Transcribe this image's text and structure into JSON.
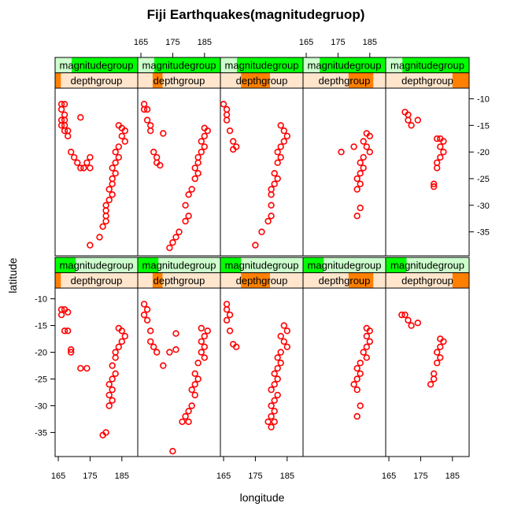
{
  "chart_data": {
    "type": "scatter",
    "title": "Fiji Earthquakes(magnitudegruop)",
    "xlabel": "longitude",
    "ylabel": "latitude",
    "xlim": [
      164,
      190
    ],
    "ylim": [
      -39.5,
      -8
    ],
    "xticks": [
      165,
      175,
      185
    ],
    "yticks": [
      -10,
      -15,
      -20,
      -25,
      -30,
      -35
    ],
    "strip_labels": {
      "top": "magnitudegroup",
      "bottom": "depthgroup"
    },
    "colors": {
      "points": "#ff0000",
      "mag_active": "#00ff00",
      "mag_bg": "#ccffcc",
      "depth_active": "#ff8000",
      "depth_bg": "#ffe5cc"
    },
    "panels": [
      {
        "row": 1,
        "col": 1,
        "magnitude_level": [
          0.2,
          1.0
        ],
        "depth_level": [
          0.0,
          0.07
        ],
        "points": [
          [
            166,
            -11
          ],
          [
            167,
            -11
          ],
          [
            166,
            -12
          ],
          [
            167,
            -13
          ],
          [
            166,
            -14
          ],
          [
            167,
            -14
          ],
          [
            166,
            -15
          ],
          [
            167,
            -15
          ],
          [
            168,
            -16
          ],
          [
            167,
            -16
          ],
          [
            168,
            -17
          ],
          [
            169,
            -20
          ],
          [
            170,
            -21
          ],
          [
            171,
            -22
          ],
          [
            172,
            -23
          ],
          [
            173,
            -23
          ],
          [
            174,
            -22
          ],
          [
            175,
            -21
          ],
          [
            175,
            -23
          ],
          [
            172,
            -13.5
          ],
          [
            184,
            -15
          ],
          [
            185,
            -15.5
          ],
          [
            186,
            -16
          ],
          [
            185,
            -17
          ],
          [
            186,
            -18
          ],
          [
            184,
            -19
          ],
          [
            183,
            -20
          ],
          [
            184,
            -21
          ],
          [
            183,
            -22
          ],
          [
            182,
            -23
          ],
          [
            183,
            -24
          ],
          [
            182,
            -25
          ],
          [
            182,
            -26
          ],
          [
            181,
            -27
          ],
          [
            182,
            -28
          ],
          [
            181,
            -29
          ],
          [
            180,
            -30
          ],
          [
            180,
            -31
          ],
          [
            180,
            -32
          ],
          [
            180,
            -33
          ],
          [
            179,
            -34
          ],
          [
            178,
            -36
          ],
          [
            175,
            -37.5
          ]
        ]
      },
      {
        "row": 1,
        "col": 2,
        "magnitude_level": [
          0.2,
          1.0
        ],
        "depth_level": [
          0.18,
          0.3
        ],
        "points": [
          [
            166,
            -11
          ],
          [
            166,
            -12
          ],
          [
            167,
            -12
          ],
          [
            167,
            -14
          ],
          [
            168,
            -15
          ],
          [
            168,
            -16
          ],
          [
            169,
            -20
          ],
          [
            170,
            -21
          ],
          [
            170,
            -22
          ],
          [
            171,
            -22.5
          ],
          [
            172,
            -16.5
          ],
          [
            185,
            -15.5
          ],
          [
            186,
            -16
          ],
          [
            185,
            -17
          ],
          [
            184,
            -18
          ],
          [
            185,
            -19
          ],
          [
            184,
            -20
          ],
          [
            183,
            -21
          ],
          [
            183,
            -22
          ],
          [
            182,
            -23
          ],
          [
            183,
            -24
          ],
          [
            182,
            -25
          ],
          [
            181,
            -27
          ],
          [
            180,
            -28
          ],
          [
            179,
            -30
          ],
          [
            179,
            -33
          ],
          [
            180,
            -32
          ],
          [
            177,
            -35
          ],
          [
            176,
            -36
          ],
          [
            175,
            -37
          ],
          [
            174,
            -38
          ]
        ]
      },
      {
        "row": 1,
        "col": 3,
        "magnitude_level": [
          0.2,
          1.0
        ],
        "depth_level": [
          0.25,
          0.6
        ],
        "points": [
          [
            165,
            -11
          ],
          [
            166,
            -12
          ],
          [
            166,
            -13
          ],
          [
            166,
            -14
          ],
          [
            167,
            -16
          ],
          [
            168,
            -18
          ],
          [
            169,
            -19
          ],
          [
            168,
            -19.5
          ],
          [
            183,
            -15
          ],
          [
            184,
            -16
          ],
          [
            185,
            -17
          ],
          [
            184,
            -18
          ],
          [
            183,
            -19
          ],
          [
            182,
            -20
          ],
          [
            183,
            -21
          ],
          [
            182,
            -22
          ],
          [
            181,
            -24
          ],
          [
            182,
            -25
          ],
          [
            181,
            -26
          ],
          [
            180,
            -27
          ],
          [
            180,
            -28
          ],
          [
            180,
            -30
          ],
          [
            180,
            -32
          ],
          [
            179,
            -33
          ],
          [
            177,
            -35
          ],
          [
            175,
            -37.5
          ]
        ]
      },
      {
        "row": 1,
        "col": 4,
        "magnitude_level": [
          0.2,
          1.0
        ],
        "depth_level": [
          0.55,
          0.85
        ],
        "points": [
          [
            184,
            -16.5
          ],
          [
            185,
            -17
          ],
          [
            183,
            -18
          ],
          [
            184,
            -19
          ],
          [
            185,
            -20
          ],
          [
            183,
            -21
          ],
          [
            182,
            -22
          ],
          [
            183,
            -23
          ],
          [
            182,
            -24
          ],
          [
            181,
            -25
          ],
          [
            182,
            -26
          ],
          [
            181,
            -27
          ],
          [
            182,
            -30.5
          ],
          [
            181,
            -32
          ],
          [
            176,
            -20
          ],
          [
            180,
            -19
          ]
        ]
      },
      {
        "row": 1,
        "col": 5,
        "magnitude_level": [
          0.2,
          1.0
        ],
        "depth_level": [
          0.8,
          1.0
        ],
        "points": [
          [
            170,
            -12.5
          ],
          [
            171,
            -13
          ],
          [
            171,
            -14
          ],
          [
            172,
            -15
          ],
          [
            174,
            -14
          ],
          [
            181,
            -17.5
          ],
          [
            182,
            -18
          ],
          [
            181,
            -19
          ],
          [
            182,
            -20
          ],
          [
            181,
            -21
          ],
          [
            180,
            -22
          ],
          [
            180,
            -23
          ],
          [
            179,
            -26
          ],
          [
            179,
            -26.5
          ],
          [
            180,
            -17.5
          ]
        ]
      },
      {
        "row": 2,
        "col": 1,
        "magnitude_level": [
          0.0,
          0.25
        ],
        "depth_level": [
          0.0,
          0.07
        ],
        "points": [
          [
            166,
            -12
          ],
          [
            167,
            -12
          ],
          [
            166,
            -13
          ],
          [
            168,
            -12.5
          ],
          [
            167,
            -16
          ],
          [
            168,
            -16
          ],
          [
            169,
            -20
          ],
          [
            169,
            -19.5
          ],
          [
            172,
            -23
          ],
          [
            174,
            -23
          ],
          [
            184,
            -15.5
          ],
          [
            185,
            -16
          ],
          [
            186,
            -17
          ],
          [
            185,
            -18
          ],
          [
            184,
            -19
          ],
          [
            183,
            -20
          ],
          [
            183,
            -21
          ],
          [
            182,
            -22.5
          ],
          [
            183,
            -24
          ],
          [
            182,
            -25
          ],
          [
            181,
            -26
          ],
          [
            182,
            -27
          ],
          [
            181,
            -28
          ],
          [
            182,
            -29
          ],
          [
            181,
            -30
          ],
          [
            180,
            -35
          ],
          [
            179,
            -35.5
          ]
        ]
      },
      {
        "row": 2,
        "col": 2,
        "magnitude_level": [
          0.0,
          0.25
        ],
        "depth_level": [
          0.18,
          0.3
        ],
        "points": [
          [
            166,
            -11
          ],
          [
            167,
            -12
          ],
          [
            166,
            -13
          ],
          [
            167,
            -14
          ],
          [
            168,
            -16
          ],
          [
            168,
            -18
          ],
          [
            169,
            -19
          ],
          [
            170,
            -20
          ],
          [
            172,
            -22.5
          ],
          [
            174,
            -20
          ],
          [
            176,
            -16.5
          ],
          [
            176,
            -19.5
          ],
          [
            184,
            -15.5
          ],
          [
            186,
            -16
          ],
          [
            185,
            -17
          ],
          [
            184,
            -18
          ],
          [
            185,
            -19
          ],
          [
            184,
            -20
          ],
          [
            185,
            -21
          ],
          [
            183,
            -22
          ],
          [
            182,
            -24
          ],
          [
            183,
            -25
          ],
          [
            182,
            -26
          ],
          [
            181,
            -27
          ],
          [
            182,
            -28
          ],
          [
            181,
            -30
          ],
          [
            180,
            -31
          ],
          [
            179,
            -32
          ],
          [
            180,
            -33
          ],
          [
            178,
            -33
          ],
          [
            175,
            -38.5
          ]
        ]
      },
      {
        "row": 2,
        "col": 3,
        "magnitude_level": [
          0.0,
          0.25
        ],
        "depth_level": [
          0.25,
          0.6
        ],
        "points": [
          [
            166,
            -11
          ],
          [
            166,
            -12
          ],
          [
            167,
            -13
          ],
          [
            166,
            -14
          ],
          [
            167,
            -16
          ],
          [
            168,
            -18.5
          ],
          [
            169,
            -19
          ],
          [
            184,
            -15
          ],
          [
            185,
            -16
          ],
          [
            183,
            -17
          ],
          [
            184,
            -18
          ],
          [
            185,
            -19
          ],
          [
            183,
            -20
          ],
          [
            182,
            -21
          ],
          [
            183,
            -22
          ],
          [
            182,
            -23
          ],
          [
            181,
            -24
          ],
          [
            182,
            -25
          ],
          [
            181,
            -26
          ],
          [
            180,
            -27
          ],
          [
            182,
            -28
          ],
          [
            181,
            -29
          ],
          [
            180,
            -30
          ],
          [
            181,
            -31
          ],
          [
            180,
            -32
          ],
          [
            181,
            -33
          ],
          [
            180,
            -34
          ],
          [
            179,
            -33
          ]
        ]
      },
      {
        "row": 2,
        "col": 4,
        "magnitude_level": [
          0.0,
          0.25
        ],
        "depth_level": [
          0.55,
          0.85
        ],
        "points": [
          [
            184,
            -15.5
          ],
          [
            185,
            -16
          ],
          [
            184,
            -17
          ],
          [
            185,
            -18
          ],
          [
            184,
            -19
          ],
          [
            183,
            -20
          ],
          [
            184,
            -21
          ],
          [
            182,
            -22
          ],
          [
            181,
            -23
          ],
          [
            182,
            -24
          ],
          [
            181,
            -25
          ],
          [
            180,
            -26
          ],
          [
            181,
            -27
          ],
          [
            182,
            -30
          ],
          [
            181,
            -32
          ]
        ]
      },
      {
        "row": 2,
        "col": 5,
        "magnitude_level": [
          0.0,
          0.25
        ],
        "depth_level": [
          0.8,
          1.0
        ],
        "points": [
          [
            169,
            -13
          ],
          [
            170,
            -13
          ],
          [
            171,
            -14
          ],
          [
            172,
            -15
          ],
          [
            174,
            -14.5
          ],
          [
            181,
            -17.5
          ],
          [
            182,
            -18
          ],
          [
            181,
            -19
          ],
          [
            180,
            -20
          ],
          [
            181,
            -21
          ],
          [
            180,
            -22
          ],
          [
            179,
            -24
          ],
          [
            179,
            -25
          ],
          [
            178,
            -26
          ]
        ]
      }
    ]
  }
}
